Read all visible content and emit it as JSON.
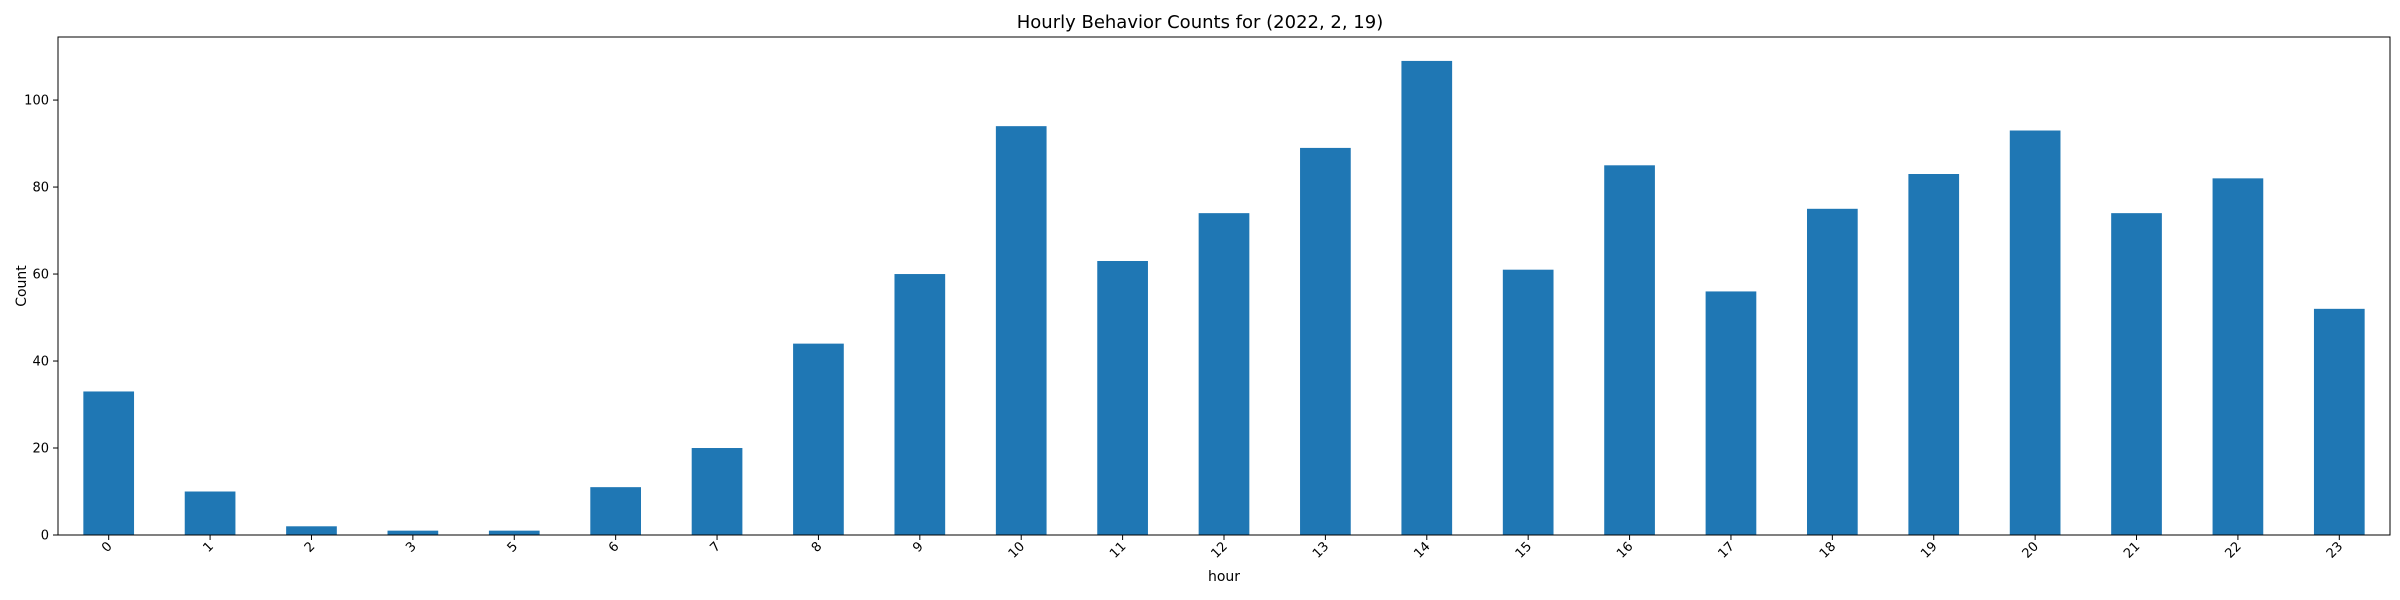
{
  "chart_data": {
    "type": "bar",
    "title": "Hourly Behavior Counts for (2022, 2, 19)",
    "xlabel": "hour",
    "ylabel": "Count",
    "categories": [
      "0",
      "1",
      "2",
      "3",
      "5",
      "6",
      "7",
      "8",
      "9",
      "10",
      "11",
      "12",
      "13",
      "14",
      "15",
      "16",
      "17",
      "18",
      "19",
      "20",
      "21",
      "22",
      "23"
    ],
    "values": [
      33,
      10,
      2,
      1,
      1,
      11,
      20,
      44,
      60,
      94,
      63,
      74,
      89,
      109,
      61,
      85,
      56,
      75,
      83,
      93,
      74,
      82,
      52
    ],
    "ylim": [
      0,
      114.5
    ],
    "yticks": [
      0,
      20,
      40,
      60,
      80,
      100
    ],
    "grid": false,
    "legend": "none",
    "bar_color": "#1f77b4"
  }
}
